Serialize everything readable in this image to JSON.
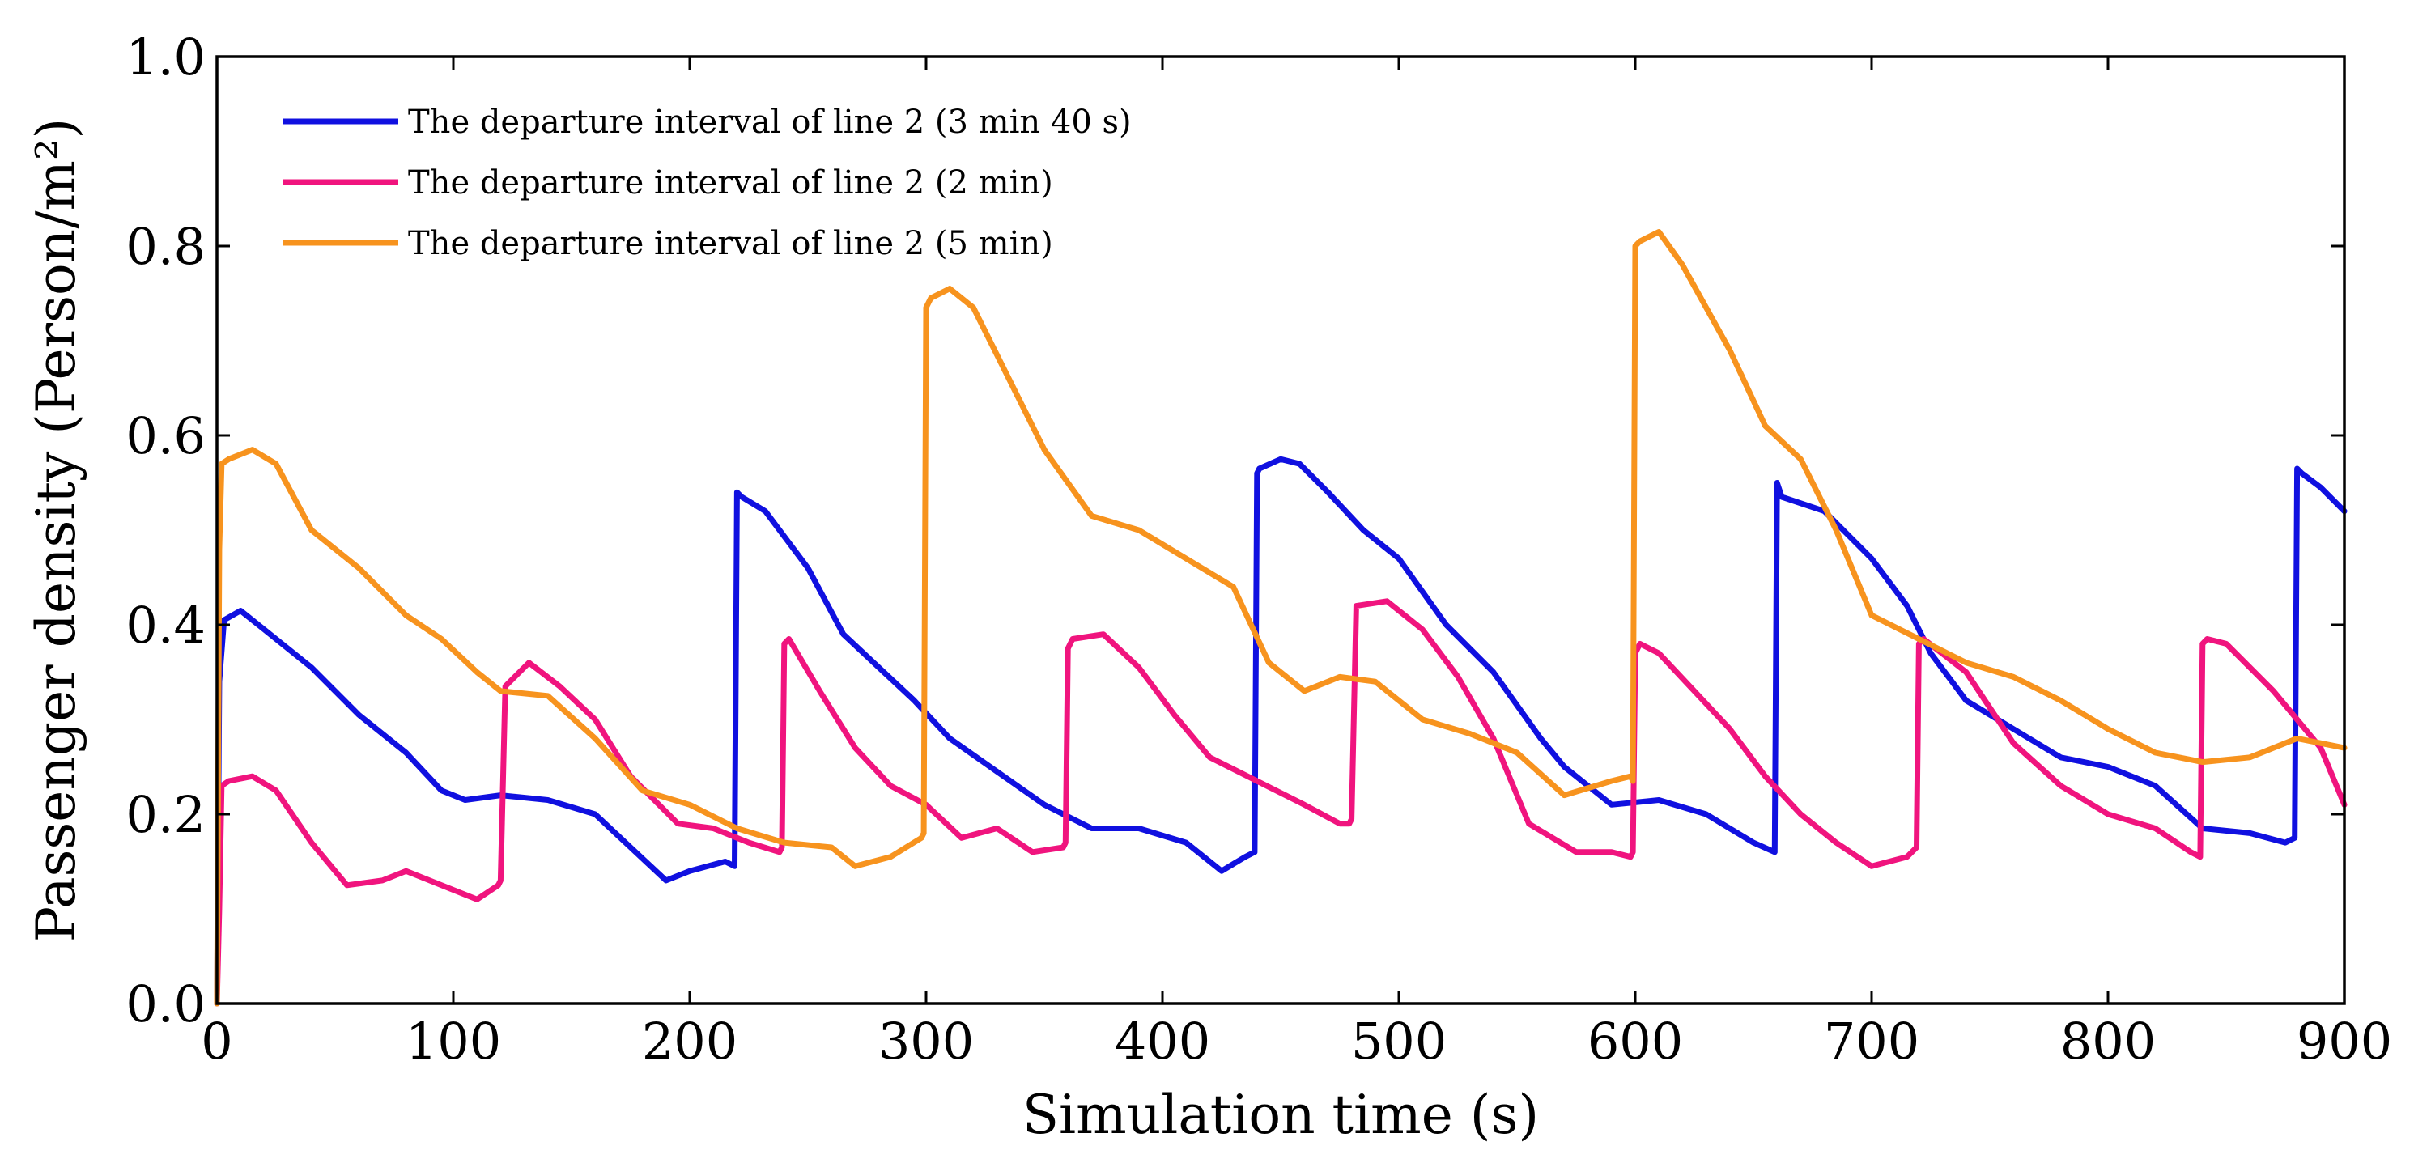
{
  "chart_data": {
    "type": "line",
    "title": "",
    "xlabel": "Simulation time (s)",
    "ylabel": "Passenger density (Person/m²)",
    "xlim": [
      0,
      900
    ],
    "ylim": [
      0,
      1.0
    ],
    "xticks": [
      0,
      100,
      200,
      300,
      400,
      500,
      600,
      700,
      800,
      900
    ],
    "xtick_labels": [
      "0",
      "100",
      "200",
      "300",
      "400",
      "500",
      "600",
      "700",
      "800",
      "900"
    ],
    "yticks": [
      0,
      0.2,
      0.4,
      0.6,
      0.8,
      1.0
    ],
    "ytick_labels": [
      "0.0",
      "0.2",
      "0.4",
      "0.6",
      "0.8",
      "1.0"
    ],
    "grid": false,
    "legend_position": "top-left",
    "series": [
      {
        "name": "The departure interval of line 2 (3 min 40 s)",
        "color": "#1010e0",
        "x": [
          0,
          1,
          3,
          10,
          20,
          40,
          60,
          80,
          95,
          105,
          120,
          140,
          160,
          175,
          190,
          200,
          215,
          219,
          220,
          222,
          232,
          250,
          265,
          280,
          295,
          310,
          330,
          350,
          370,
          390,
          410,
          425,
          435,
          439,
          440,
          441,
          450,
          458,
          470,
          485,
          500,
          520,
          540,
          560,
          570,
          590,
          610,
          630,
          650,
          659,
          660,
          662,
          680,
          700,
          715,
          725,
          740,
          760,
          780,
          800,
          820,
          840,
          860,
          875,
          879,
          880,
          882,
          890,
          900
        ],
        "y": [
          0.0,
          0.34,
          0.405,
          0.415,
          0.395,
          0.355,
          0.305,
          0.265,
          0.225,
          0.215,
          0.22,
          0.215,
          0.2,
          0.165,
          0.13,
          0.14,
          0.15,
          0.145,
          0.54,
          0.535,
          0.52,
          0.46,
          0.39,
          0.355,
          0.32,
          0.28,
          0.245,
          0.21,
          0.185,
          0.185,
          0.17,
          0.14,
          0.155,
          0.16,
          0.56,
          0.565,
          0.575,
          0.57,
          0.54,
          0.5,
          0.47,
          0.4,
          0.35,
          0.28,
          0.25,
          0.21,
          0.215,
          0.2,
          0.17,
          0.16,
          0.55,
          0.535,
          0.52,
          0.47,
          0.42,
          0.37,
          0.32,
          0.29,
          0.26,
          0.25,
          0.23,
          0.185,
          0.18,
          0.17,
          0.175,
          0.565,
          0.56,
          0.545,
          0.52
        ]
      },
      {
        "name": "The departure interval of line 2 (2 min)",
        "color": "#f0147e",
        "x": [
          0,
          1,
          2,
          5,
          15,
          25,
          40,
          55,
          70,
          80,
          95,
          110,
          119,
          120,
          122,
          132,
          145,
          160,
          175,
          195,
          210,
          225,
          238,
          239,
          240,
          242,
          255,
          270,
          285,
          300,
          315,
          330,
          345,
          358,
          359,
          360,
          362,
          375,
          390,
          405,
          420,
          440,
          460,
          475,
          479,
          480,
          482,
          495,
          510,
          525,
          540,
          555,
          575,
          590,
          598,
          599,
          600,
          602,
          610,
          625,
          640,
          655,
          670,
          685,
          700,
          715,
          719,
          720,
          722,
          740,
          760,
          780,
          800,
          820,
          835,
          839,
          840,
          842,
          850,
          870,
          890,
          900
        ],
        "y": [
          0.0,
          0.1,
          0.23,
          0.235,
          0.24,
          0.225,
          0.17,
          0.125,
          0.13,
          0.14,
          0.125,
          0.11,
          0.125,
          0.13,
          0.335,
          0.36,
          0.335,
          0.3,
          0.24,
          0.19,
          0.185,
          0.17,
          0.16,
          0.165,
          0.38,
          0.385,
          0.33,
          0.27,
          0.23,
          0.21,
          0.175,
          0.185,
          0.16,
          0.165,
          0.17,
          0.375,
          0.385,
          0.39,
          0.355,
          0.305,
          0.26,
          0.235,
          0.21,
          0.19,
          0.19,
          0.195,
          0.42,
          0.425,
          0.395,
          0.345,
          0.28,
          0.19,
          0.16,
          0.16,
          0.155,
          0.16,
          0.37,
          0.38,
          0.37,
          0.33,
          0.29,
          0.24,
          0.2,
          0.17,
          0.145,
          0.155,
          0.165,
          0.38,
          0.385,
          0.35,
          0.275,
          0.23,
          0.2,
          0.185,
          0.16,
          0.155,
          0.38,
          0.385,
          0.38,
          0.33,
          0.27,
          0.21
        ]
      },
      {
        "name": "The departure interval of line 2 (5 min)",
        "color": "#f7931e",
        "x": [
          0,
          1,
          2,
          5,
          15,
          25,
          40,
          60,
          80,
          95,
          110,
          120,
          140,
          160,
          180,
          200,
          220,
          240,
          260,
          270,
          285,
          298,
          299,
          300,
          302,
          310,
          320,
          335,
          350,
          370,
          390,
          410,
          430,
          445,
          460,
          475,
          490,
          510,
          530,
          550,
          570,
          590,
          598,
          599,
          600,
          602,
          610,
          620,
          640,
          655,
          670,
          685,
          700,
          720,
          740,
          760,
          780,
          800,
          820,
          840,
          860,
          880,
          900
        ],
        "y": [
          0.0,
          0.48,
          0.57,
          0.575,
          0.585,
          0.57,
          0.5,
          0.46,
          0.41,
          0.385,
          0.35,
          0.33,
          0.325,
          0.28,
          0.225,
          0.21,
          0.185,
          0.17,
          0.165,
          0.145,
          0.155,
          0.175,
          0.18,
          0.735,
          0.745,
          0.755,
          0.735,
          0.66,
          0.585,
          0.515,
          0.5,
          0.47,
          0.44,
          0.36,
          0.33,
          0.345,
          0.34,
          0.3,
          0.285,
          0.265,
          0.22,
          0.235,
          0.24,
          0.235,
          0.8,
          0.805,
          0.815,
          0.78,
          0.69,
          0.61,
          0.575,
          0.5,
          0.41,
          0.385,
          0.36,
          0.345,
          0.32,
          0.29,
          0.265,
          0.255,
          0.26,
          0.28,
          0.27
        ]
      }
    ]
  }
}
